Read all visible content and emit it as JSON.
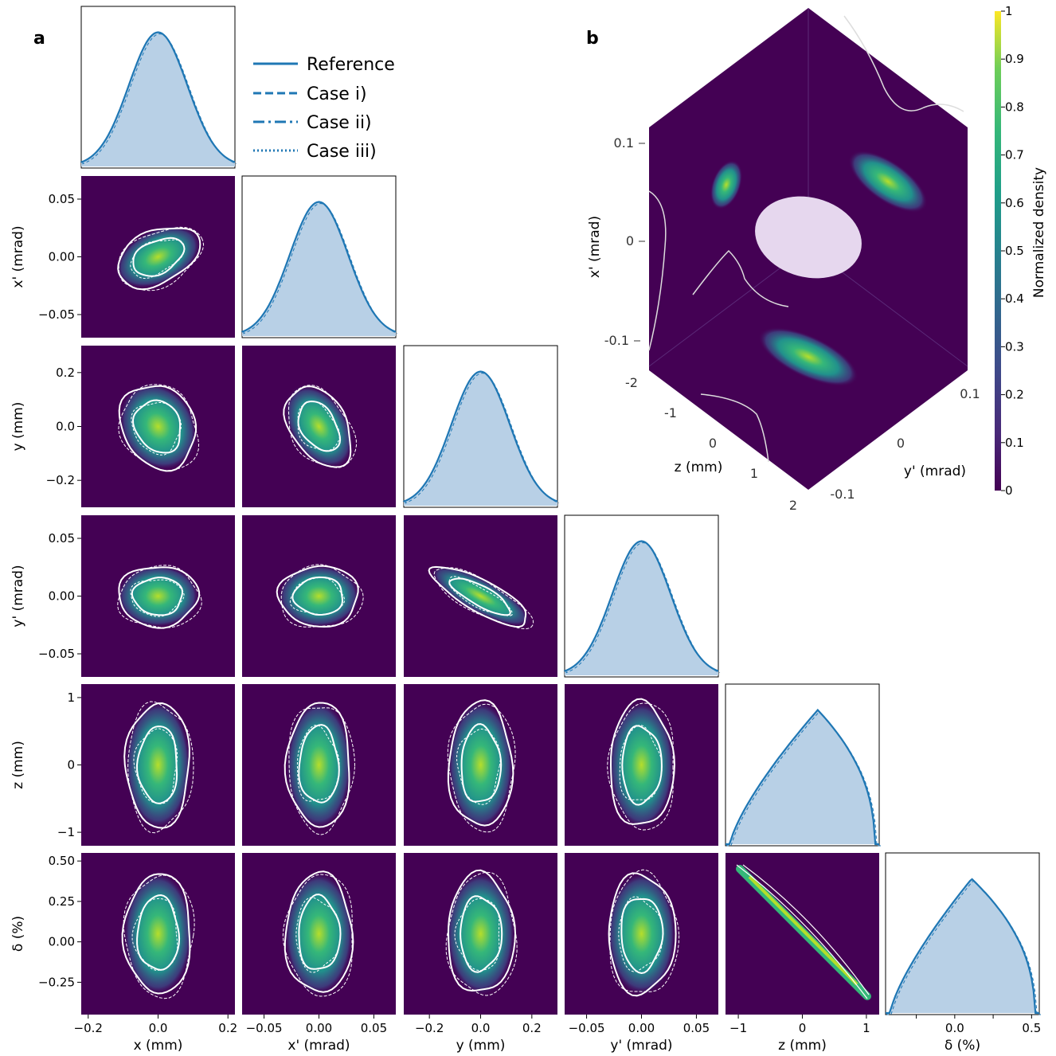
{
  "panel_letters": {
    "a": "a",
    "b": "b"
  },
  "legend": {
    "reference": "Reference",
    "case1": "Case i)",
    "case2": "Case ii)",
    "case3": "Case iii)"
  },
  "colors": {
    "line": "#1f77b4",
    "fill": "#b8d0e6",
    "background": "#440154",
    "contour": "#ffffff"
  },
  "chart_data": [
    {
      "type": "heatmap",
      "panel": "a",
      "description_kind": "corner plot",
      "variables": [
        {
          "key": "x",
          "label": "x (mm)",
          "ticks": [
            -0.2,
            0.0,
            0.2
          ],
          "tick_labels": [
            "−0.2",
            "0.0",
            "0.2"
          ],
          "lim": [
            -0.22,
            0.22
          ]
        },
        {
          "key": "xp",
          "label": "x' (mrad)",
          "ticks": [
            -0.05,
            0.0,
            0.05
          ],
          "tick_labels": [
            "−0.05",
            "0.00",
            "0.05"
          ],
          "lim": [
            -0.07,
            0.07
          ]
        },
        {
          "key": "y",
          "label": "y (mm)",
          "ticks": [
            -0.2,
            0.0,
            0.2
          ],
          "tick_labels": [
            "−0.2",
            "0.0",
            "0.2"
          ],
          "lim": [
            -0.3,
            0.3
          ]
        },
        {
          "key": "yp",
          "label": "y' (mrad)",
          "ticks": [
            -0.05,
            0.0,
            0.05
          ],
          "tick_labels": [
            "−0.05",
            "0.00",
            "0.05"
          ],
          "lim": [
            -0.07,
            0.07
          ]
        },
        {
          "key": "z",
          "label": "z (mm)",
          "ticks": [
            -1,
            0,
            1
          ],
          "tick_labels": [
            "−1",
            "0",
            "1"
          ],
          "lim": [
            -1.2,
            1.2
          ]
        },
        {
          "key": "delta",
          "label": "δ (%)",
          "ticks": [
            -0.25,
            0.0,
            0.25,
            0.5
          ],
          "tick_labels": [
            "−0.25",
            "0.00",
            "0.25",
            "0.50"
          ],
          "x_tick_labels": [
            "",
            "0.0",
            "",
            "0.5"
          ],
          "lim": [
            -0.45,
            0.55
          ]
        }
      ],
      "series": [
        {
          "name": "Reference",
          "style": "solid"
        },
        {
          "name": "Case i)",
          "style": "dashed"
        },
        {
          "name": "Case ii)",
          "style": "dashdot"
        },
        {
          "name": "Case iii)",
          "style": "dotted"
        }
      ],
      "marginals": [
        {
          "variable": "x",
          "shape": "gaussian",
          "center": 0.0,
          "width": 0.08
        },
        {
          "variable": "xp",
          "shape": "gaussian",
          "center": 0.0,
          "width": 0.017
        },
        {
          "variable": "y",
          "shape": "gaussian",
          "center": 0.0,
          "width": 0.08
        },
        {
          "variable": "yp",
          "shape": "gaussian",
          "center": 0.0,
          "width": 0.014
        },
        {
          "variable": "z",
          "shape": "skewed",
          "peak": 0.3
        },
        {
          "variable": "delta",
          "shape": "skewed",
          "peak": 0.12
        }
      ],
      "grid": false
    },
    {
      "type": "heatmap",
      "panel": "b",
      "description_kind": "3D projections",
      "axes": {
        "xp": {
          "label": "x' (mrad)",
          "tick_labels": [
            "0.1",
            "0",
            "-0.1"
          ]
        },
        "z": {
          "label": "z (mm)",
          "tick_labels": [
            "-2",
            "-1",
            "0",
            "1",
            "2"
          ]
        },
        "yp": {
          "label": "y' (mrad)",
          "tick_labels": [
            "0.1",
            "0",
            "-0.1"
          ]
        }
      },
      "colorbar": {
        "label": "Normalized density",
        "ticks": [
          "0",
          "0.1",
          "0.2",
          "0.3",
          "0.4",
          "0.5",
          "0.6",
          "0.7",
          "0.8",
          "0.9",
          "1"
        ],
        "range": [
          0,
          1
        ],
        "colormap": "viridis"
      }
    }
  ]
}
